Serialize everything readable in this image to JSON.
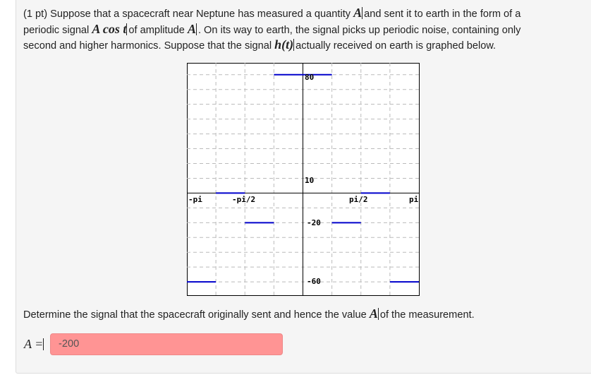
{
  "problem": {
    "line1_a": "(1 pt) Suppose that a spacecraft near Neptune has measured a quantity ",
    "var_A": "A",
    "line1_b": "and sent it to earth in the form of a",
    "line2_a": "periodic signal ",
    "signal_expr": "A cos t",
    "line2_b": "of amplitude ",
    "line2_c": ". On its way to earth, the signal picks up periodic noise, containing only",
    "line3_a": "second and higher harmonics. Suppose that the signal ",
    "h_expr": "h(t)",
    "line3_b": "actually received on earth is graphed below.",
    "question_a": "Determine the signal that the spacecraft originally sent and hence the value ",
    "question_b": "of the measurement.",
    "answer_label": "A =",
    "answer_value": "-200",
    "answer_status_color": "#ff9494"
  },
  "chart_data": {
    "type": "line",
    "xlim": [
      -3.14159,
      3.14159
    ],
    "ylim": [
      -69,
      88
    ],
    "grid": true,
    "x_tick_labels": [
      "-pi",
      "-pi/2",
      "pi/2",
      "pi"
    ],
    "y_tick_labels": [
      "80",
      "10",
      "-20",
      "-60"
    ],
    "line_color": "#0000cc",
    "segments": [
      {
        "x0": "-pi",
        "x1": "-3pi/4",
        "y": -60
      },
      {
        "x0": "-3pi/4",
        "x1": "-pi/2",
        "y": 0
      },
      {
        "x0": "-pi/2",
        "x1": "-pi/4",
        "y": -20
      },
      {
        "x0": "-pi/4",
        "x1": "pi/4",
        "y": 80
      },
      {
        "x0": "pi/4",
        "x1": "pi/2",
        "y": -20
      },
      {
        "x0": "pi/2",
        "x1": "3pi/4",
        "y": 0
      },
      {
        "x0": "3pi/4",
        "x1": "pi",
        "y": -60
      }
    ]
  }
}
